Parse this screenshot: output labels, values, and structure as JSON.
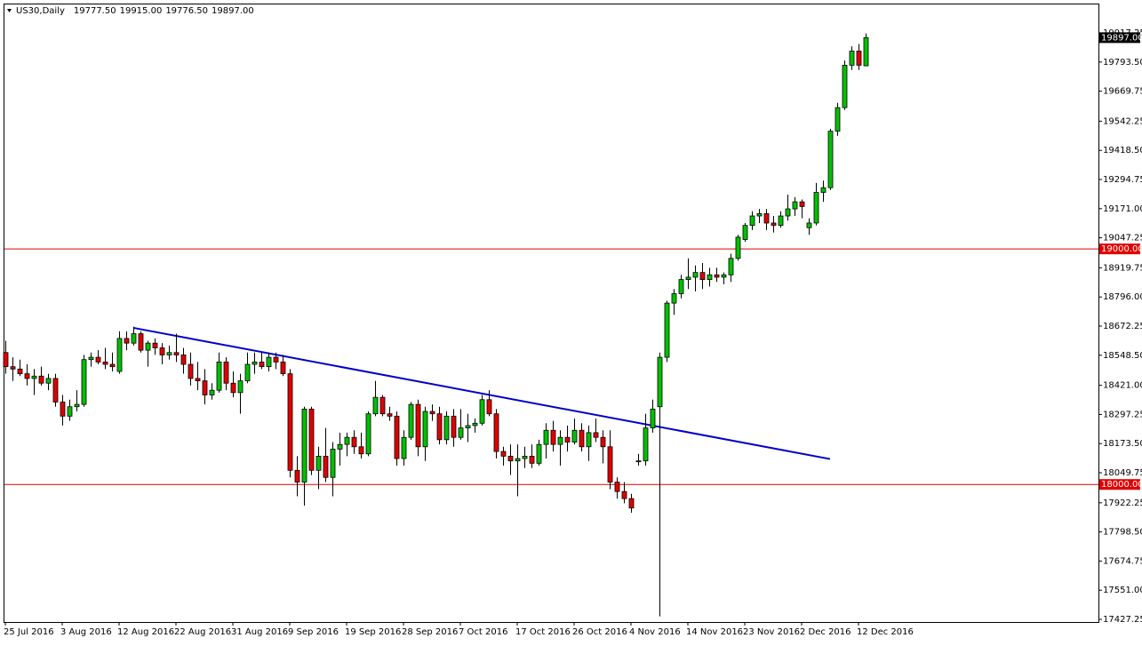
{
  "chart_data": {
    "type": "candlestick",
    "title": "US30,Daily",
    "header_values": [
      "19777.50",
      "19915.00",
      "19776.50",
      "19897.00"
    ],
    "categories": [
      "25 Jul 2016",
      null,
      null,
      null,
      null,
      null,
      null,
      null,
      "3 Aug 2016",
      null,
      null,
      null,
      null,
      null,
      null,
      null,
      "12 Aug 2016",
      null,
      null,
      null,
      null,
      null,
      null,
      null,
      "22 Aug 2016",
      null,
      null,
      null,
      null,
      null,
      null,
      null,
      "31 Aug 2016",
      null,
      null,
      null,
      null,
      null,
      null,
      null,
      "9 Sep 2016",
      null,
      null,
      null,
      null,
      null,
      null,
      null,
      "19 Sep 2016",
      null,
      null,
      null,
      null,
      null,
      null,
      null,
      "28 Sep 2016",
      null,
      null,
      null,
      null,
      null,
      null,
      null,
      "7 Oct 2016",
      null,
      null,
      null,
      null,
      null,
      null,
      null,
      "17 Oct 2016",
      null,
      null,
      null,
      null,
      null,
      null,
      null,
      "26 Oct 2016",
      null,
      null,
      null,
      null,
      null,
      null,
      null,
      "4 Nov 2016",
      null,
      null,
      null,
      null,
      null,
      null,
      null,
      "14 Nov 2016",
      null,
      null,
      null,
      null,
      null,
      null,
      null,
      "23 Nov 2016",
      null,
      null,
      null,
      null,
      null,
      null,
      null,
      "2 Dec 2016",
      null,
      null,
      null,
      null,
      null,
      null,
      null,
      "12 Dec 2016",
      null
    ],
    "open": [
      18560,
      18500,
      18490,
      18470,
      18450,
      18460,
      18430,
      18450,
      18350,
      18290,
      18330,
      18340,
      18530,
      18540,
      18520,
      18510,
      18480,
      18620,
      18600,
      18640,
      18570,
      18600,
      18580,
      18550,
      18560,
      18550,
      18510,
      18450,
      18440,
      18380,
      18400,
      18520,
      18430,
      18390,
      18440,
      18510,
      18520,
      18500,
      18540,
      18520,
      18470,
      18060,
      18010,
      18320,
      18060,
      18120,
      18030,
      18150,
      18170,
      18200,
      18160,
      18130,
      18300,
      18370,
      18300,
      18290,
      18110,
      18200,
      18340,
      18160,
      18310,
      18300,
      18190,
      18290,
      18200,
      18240,
      18250,
      18260,
      18360,
      18300,
      18140,
      18120,
      18100,
      18110,
      18120,
      18090,
      18170,
      18230,
      18170,
      18200,
      18180,
      18230,
      18160,
      18220,
      18200,
      18160,
      18010,
      17970,
      17940,
      18100,
      18100,
      18240,
      18330,
      18540,
      18770,
      18810,
      18870,
      18880,
      18900,
      18870,
      18890,
      18880,
      18890,
      18960,
      19040,
      19100,
      19140,
      19150,
      19110,
      19100,
      19140,
      19170,
      19200,
      19090,
      19110,
      19240,
      19260,
      19500,
      19600,
      19780,
      19840,
      19777.5
    ],
    "high": [
      18610,
      18540,
      18530,
      18510,
      18490,
      18500,
      18470,
      18470,
      18380,
      18360,
      18400,
      18550,
      18560,
      18570,
      18580,
      18560,
      18650,
      18650,
      18670,
      18650,
      18610,
      18620,
      18600,
      18590,
      18640,
      18580,
      18560,
      18520,
      18490,
      18430,
      18560,
      18540,
      18480,
      18470,
      18560,
      18560,
      18560,
      18560,
      18560,
      18550,
      18490,
      18120,
      18330,
      18330,
      18160,
      18240,
      18180,
      18220,
      18220,
      18230,
      18220,
      18310,
      18440,
      18380,
      18330,
      18310,
      18230,
      18350,
      18360,
      18330,
      18340,
      18330,
      18310,
      18320,
      18320,
      18300,
      18280,
      18380,
      18400,
      18320,
      18160,
      18170,
      18170,
      18160,
      18170,
      18190,
      18260,
      18270,
      18230,
      18250,
      18280,
      18260,
      18250,
      18280,
      18230,
      18230,
      18030,
      18010,
      17960,
      18130,
      18300,
      18360,
      18560,
      18780,
      18830,
      18890,
      18960,
      18930,
      18940,
      18920,
      18920,
      18900,
      18980,
      19060,
      19110,
      19160,
      19170,
      19170,
      19140,
      19160,
      19230,
      19220,
      19210,
      19130,
      19280,
      19290,
      19510,
      19620,
      19800,
      19860,
      19870,
      19915
    ],
    "low": [
      18470,
      18440,
      18460,
      18420,
      18380,
      18420,
      18400,
      18330,
      18250,
      18270,
      18310,
      18330,
      18500,
      18510,
      18490,
      18480,
      18470,
      18570,
      18590,
      18560,
      18500,
      18550,
      18510,
      18530,
      18520,
      18470,
      18420,
      18400,
      18340,
      18360,
      18390,
      18400,
      18370,
      18300,
      18430,
      18470,
      18490,
      18480,
      18490,
      18460,
      18030,
      17950,
      17910,
      18040,
      17980,
      18010,
      17950,
      18080,
      18120,
      18130,
      18110,
      18120,
      18290,
      18290,
      18270,
      18080,
      18080,
      18190,
      18120,
      18100,
      18270,
      18170,
      18170,
      18160,
      18190,
      18180,
      18220,
      18250,
      18290,
      18110,
      18080,
      18040,
      17950,
      18070,
      18070,
      18080,
      18110,
      18140,
      18080,
      18140,
      18170,
      18140,
      18100,
      18180,
      18090,
      17980,
      17940,
      17920,
      17880,
      18080,
      18080,
      18220,
      17440,
      18520,
      18720,
      18790,
      18830,
      18820,
      18830,
      18840,
      18860,
      18850,
      18860,
      18950,
      19030,
      19080,
      19110,
      19080,
      19070,
      19090,
      19120,
      19140,
      19130,
      19060,
      19100,
      19200,
      19250,
      19480,
      19590,
      19760,
      19760,
      19776.5
    ],
    "close": [
      18500,
      18490,
      18470,
      18450,
      18460,
      18430,
      18450,
      18350,
      18290,
      18330,
      18340,
      18530,
      18540,
      18520,
      18510,
      18500,
      18620,
      18600,
      18640,
      18570,
      18600,
      18580,
      18550,
      18560,
      18550,
      18510,
      18450,
      18440,
      18380,
      18400,
      18520,
      18430,
      18390,
      18440,
      18510,
      18520,
      18500,
      18540,
      18520,
      18470,
      18060,
      18010,
      18320,
      18060,
      18120,
      18030,
      18150,
      18170,
      18200,
      18160,
      18130,
      18300,
      18370,
      18300,
      18290,
      18110,
      18200,
      18340,
      18160,
      18310,
      18300,
      18190,
      18290,
      18200,
      18240,
      18250,
      18260,
      18360,
      18300,
      18140,
      18120,
      18100,
      18110,
      18120,
      18090,
      18170,
      18230,
      18170,
      18200,
      18180,
      18230,
      18160,
      18220,
      18200,
      18160,
      18010,
      17970,
      17940,
      17900,
      18100,
      18240,
      18320,
      18540,
      18770,
      18810,
      18870,
      18880,
      18900,
      18870,
      18890,
      18880,
      18890,
      18960,
      19050,
      19100,
      19140,
      19150,
      19110,
      19100,
      19140,
      19170,
      19200,
      19180,
      19110,
      19240,
      19260,
      19500,
      19600,
      19780,
      19840,
      19780,
      19897
    ],
    "up_color": "#00c000",
    "down_color": "#e00000",
    "ylim": [
      17416,
      20038
    ],
    "yticks": [
      19917.25,
      {
        "value": 19793.5,
        "label": "19793.50"
      },
      19669.75,
      19542.25,
      {
        "value": 19418.5,
        "label": "19418.50"
      },
      19294.75,
      {
        "value": 19171,
        "label": "19171.00"
      },
      19047.25,
      18919.75,
      {
        "value": 18796,
        "label": "18796.00"
      },
      18672.25,
      {
        "value": 18548.5,
        "label": "18548.50"
      },
      {
        "value": 18421,
        "label": "18421.00"
      },
      18297.25,
      {
        "value": 18173.5,
        "label": "18173.50"
      },
      18049.75,
      17922.25,
      {
        "value": 17798.5,
        "label": "17798.50"
      },
      17674.75,
      {
        "value": 17551,
        "label": "17551.00"
      },
      17427.25
    ],
    "levels": [
      {
        "value": 19000,
        "label": "19000.00"
      },
      {
        "value": 18000,
        "label": "18000.00"
      }
    ],
    "level_color": "#e00000",
    "last_price": {
      "value": 19897,
      "label": "19897.00"
    },
    "trendline": {
      "x": [
        18,
        116
      ],
      "y": [
        18665,
        18108
      ],
      "color": "#0000c8"
    }
  }
}
